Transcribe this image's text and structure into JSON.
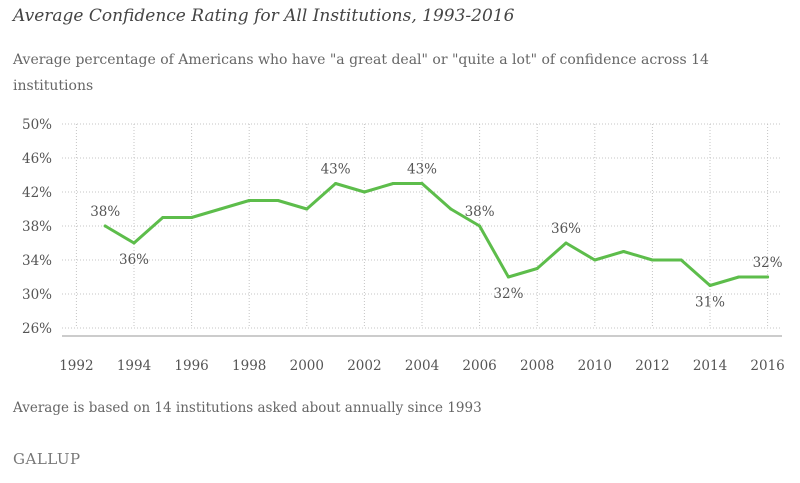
{
  "chart_data": {
    "type": "line",
    "title": "Average Confidence Rating for All Institutions, 1993-2016",
    "subtitle": "Average percentage of Americans who have \"a great deal\" or \"quite a lot\" of confidence across 14 institutions",
    "xlabel": "",
    "ylabel": "",
    "x": [
      1993,
      1994,
      1995,
      1996,
      1997,
      1998,
      1999,
      2000,
      2001,
      2002,
      2003,
      2004,
      2005,
      2006,
      2007,
      2008,
      2009,
      2010,
      2011,
      2012,
      2013,
      2014,
      2015,
      2016
    ],
    "series": [
      {
        "name": "Average confidence",
        "values": [
          38,
          36,
          39,
          39,
          40,
          41,
          41,
          40,
          43,
          42,
          43,
          43,
          40,
          38,
          32,
          33,
          36,
          34,
          35,
          34,
          34,
          31,
          32,
          32
        ],
        "color": "#5dbd4b"
      }
    ],
    "xlim": [
      1991.5,
      2016.5
    ],
    "ylim": [
      26,
      50
    ],
    "yticks": [
      26,
      30,
      34,
      38,
      42,
      46,
      50
    ],
    "yticklabels": [
      "26%",
      "30%",
      "34%",
      "38%",
      "42%",
      "46%",
      "50%"
    ],
    "xticks": [
      1992,
      1994,
      1996,
      1998,
      2000,
      2002,
      2004,
      2006,
      2008,
      2010,
      2012,
      2014,
      2016
    ],
    "xticklabels": [
      "1992",
      "1994",
      "1996",
      "1998",
      "2000",
      "2002",
      "2004",
      "2006",
      "2008",
      "2010",
      "2012",
      "2014",
      "2016"
    ],
    "grid": true,
    "data_labels": [
      {
        "x": 1993,
        "text": "38%",
        "position": "above"
      },
      {
        "x": 1994,
        "text": "36%",
        "position": "below"
      },
      {
        "x": 2001,
        "text": "43%",
        "position": "above"
      },
      {
        "x": 2004,
        "text": "43%",
        "position": "above"
      },
      {
        "x": 2006,
        "text": "38%",
        "position": "above"
      },
      {
        "x": 2007,
        "text": "32%",
        "position": "below"
      },
      {
        "x": 2009,
        "text": "36%",
        "position": "above"
      },
      {
        "x": 2014,
        "text": "31%",
        "position": "below"
      },
      {
        "x": 2016,
        "text": "32%",
        "position": "above"
      }
    ]
  },
  "footnote": "Average is based on 14 institutions asked about annually since 1993",
  "source": "GALLUP"
}
